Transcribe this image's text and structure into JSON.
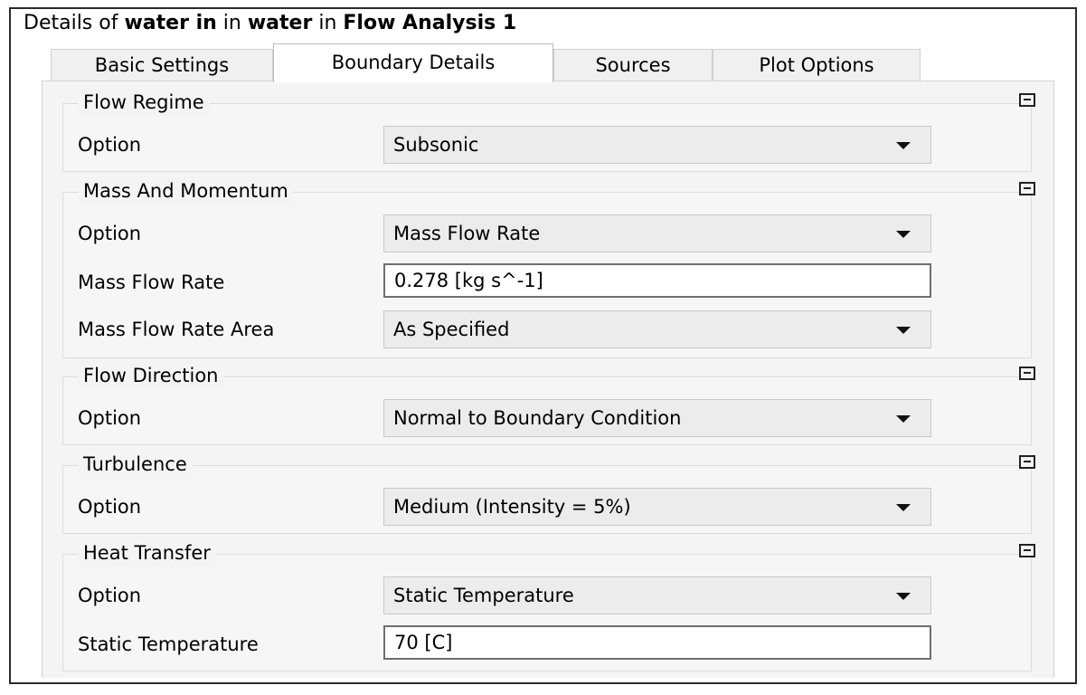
{
  "header": {
    "prefix": "Details of",
    "object": "water in",
    "in1": "in",
    "domain": "water",
    "in2": "in",
    "analysis": "Flow Analysis 1"
  },
  "tabs": [
    {
      "label": "Basic Settings",
      "active": false
    },
    {
      "label": "Boundary Details",
      "active": true
    },
    {
      "label": "Sources",
      "active": false
    },
    {
      "label": "Plot Options",
      "active": false
    }
  ],
  "groups": {
    "flow_regime": {
      "title": "Flow Regime",
      "option_label": "Option",
      "option_value": "Subsonic"
    },
    "mass_momentum": {
      "title": "Mass And Momentum",
      "option_label": "Option",
      "option_value": "Mass Flow Rate",
      "rate_label": "Mass Flow Rate",
      "rate_value": "0.278 [kg s^-1]",
      "area_label": "Mass Flow Rate Area",
      "area_value": "As Specified"
    },
    "flow_direction": {
      "title": "Flow Direction",
      "option_label": "Option",
      "option_value": "Normal to Boundary Condition"
    },
    "turbulence": {
      "title": "Turbulence",
      "option_label": "Option",
      "option_value": "Medium (Intensity = 5%)"
    },
    "heat_transfer": {
      "title": "Heat Transfer",
      "option_label": "Option",
      "option_value": "Static Temperature",
      "temp_label": "Static Temperature",
      "temp_value": "70 [C]"
    }
  },
  "icons": {
    "collapse": "collapse-minus-icon",
    "dropdown": "chevron-down-icon"
  }
}
